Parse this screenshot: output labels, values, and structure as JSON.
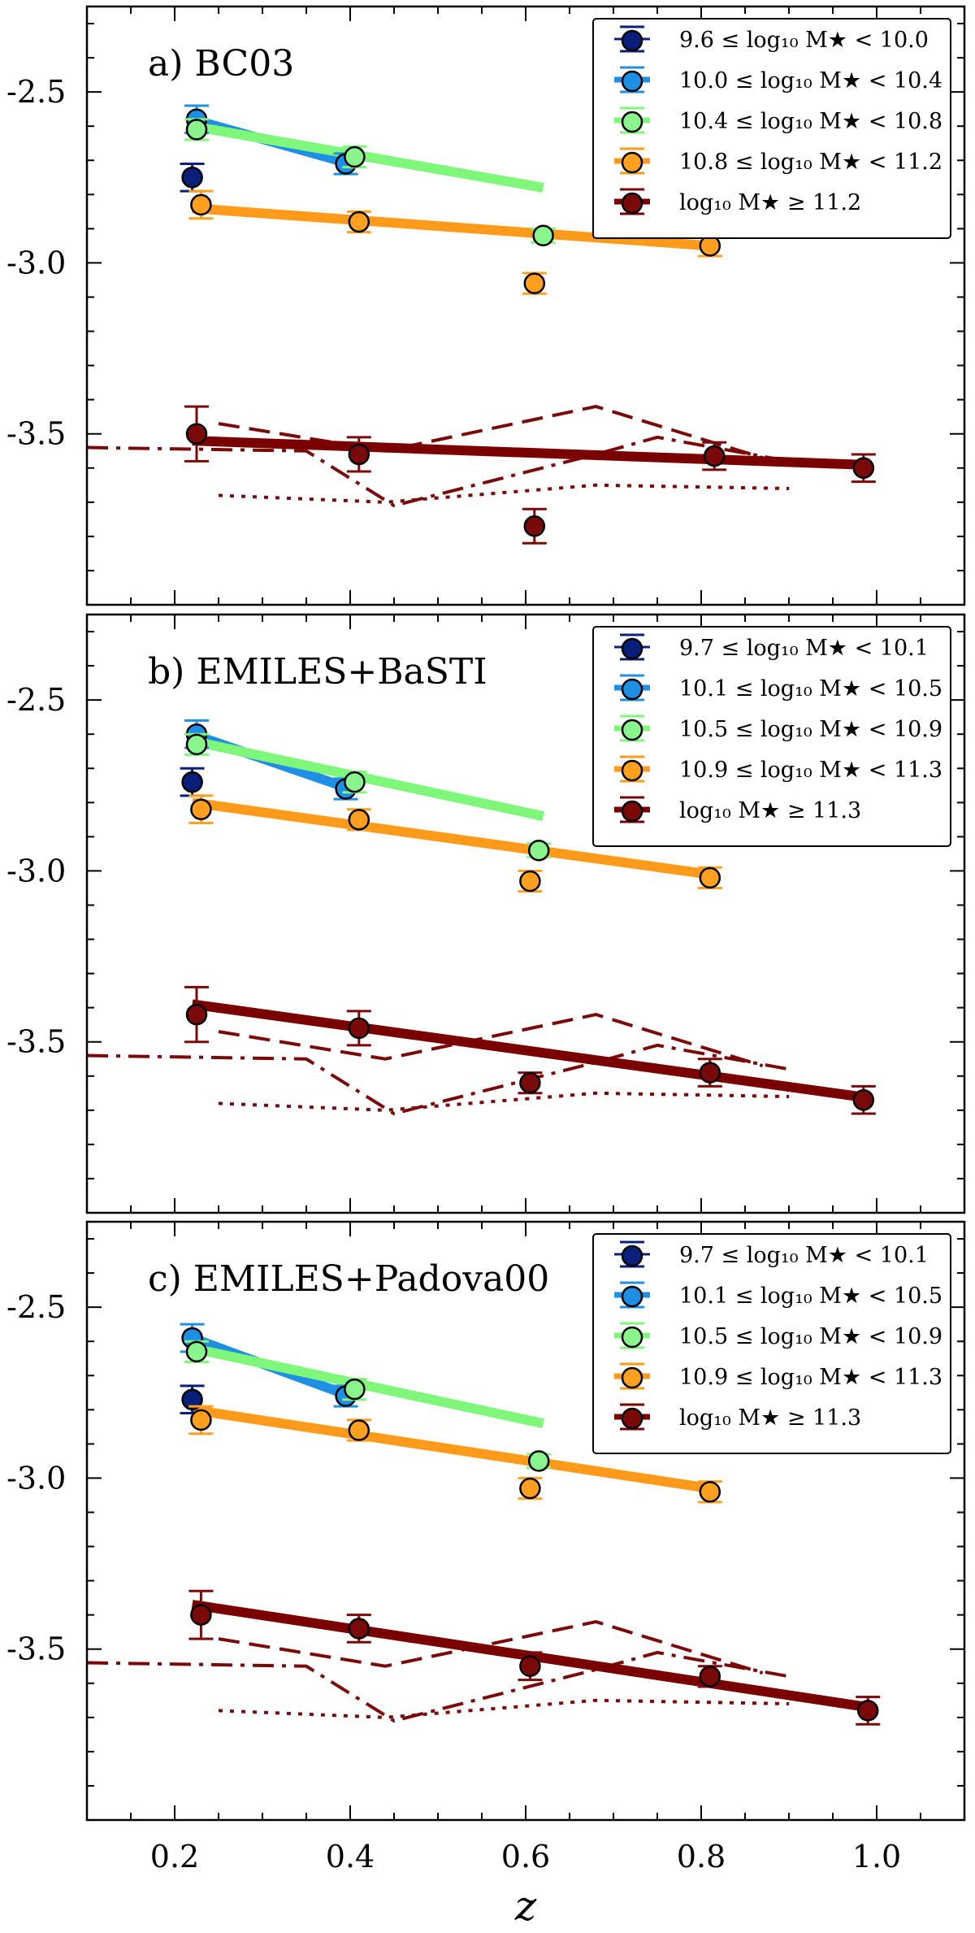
{
  "colors": {
    "bin0": "#0a1f7a",
    "bin1": "#1f8fe6",
    "bin2": "#8af58c",
    "bin3": "#ffa020",
    "bin4": "#7a0a0a",
    "bin1_line": "#1f8fe6",
    "bin2_line": "#7ef77a",
    "bin3_line": "#ff9a1a",
    "bin4_line": "#7a0000"
  },
  "xaxis": {
    "label": "z",
    "range": [
      0.1,
      1.1
    ],
    "ticks": [
      0.2,
      0.4,
      0.6,
      0.8,
      1.0
    ],
    "tick_labels": [
      "0.2",
      "0.4",
      "0.6",
      "0.8",
      "1.0"
    ]
  },
  "yaxis": {
    "range": [
      -4.0,
      -2.25
    ],
    "ticks": [
      -2.5,
      -3.0,
      -3.5
    ],
    "tick_labels": [
      "-2.5",
      "-3.0",
      "-3.5"
    ]
  },
  "chart_data": [
    {
      "type": "scatter",
      "panel_label": "a)   BC03",
      "legend": [
        "9.6 ≤ log₁₀ M★ < 10.0",
        "10.0 ≤ log₁₀ M★ < 10.4",
        "10.4 ≤ log₁₀ M★ < 10.8",
        "10.8 ≤ log₁₀ M★ < 11.2",
        "log₁₀ M★ ≥ 11.2"
      ],
      "series": [
        {
          "name": "bin0",
          "x": [
            0.22
          ],
          "y": [
            -2.75
          ],
          "err": [
            0.04
          ]
        },
        {
          "name": "bin1",
          "x": [
            0.225,
            0.395
          ],
          "y": [
            -2.58,
            -2.71
          ],
          "err": [
            0.04,
            0.03
          ],
          "fit_x": [
            0.22,
            0.4
          ],
          "fit_y": [
            -2.58,
            -2.71
          ]
        },
        {
          "name": "bin2",
          "x": [
            0.225,
            0.405,
            0.62
          ],
          "y": [
            -2.61,
            -2.69,
            -2.92
          ],
          "err": [
            0.03,
            0.03,
            0.02
          ],
          "fit_x": [
            0.22,
            0.62
          ],
          "fit_y": [
            -2.6,
            -2.78
          ]
        },
        {
          "name": "bin3",
          "x": [
            0.23,
            0.41,
            0.61,
            0.81
          ],
          "y": [
            -2.83,
            -2.88,
            -3.06,
            -2.95
          ],
          "err": [
            0.04,
            0.03,
            0.03,
            0.03
          ],
          "fit_x": [
            0.22,
            0.81
          ],
          "fit_y": [
            -2.84,
            -2.95
          ]
        },
        {
          "name": "bin4",
          "x": [
            0.225,
            0.41,
            0.61,
            0.815,
            0.985
          ],
          "y": [
            -3.5,
            -3.56,
            -3.77,
            -3.565,
            -3.6
          ],
          "err": [
            0.08,
            0.05,
            0.05,
            0.04,
            0.04
          ],
          "fit_x": [
            0.22,
            0.98
          ],
          "fit_y": [
            -3.52,
            -3.59
          ]
        }
      ],
      "reference_lines": [
        {
          "style": "dashed",
          "x": [
            0.25,
            0.44,
            0.68,
            0.87
          ],
          "y": [
            -3.47,
            -3.55,
            -3.42,
            -3.57
          ]
        },
        {
          "style": "dashdot",
          "x": [
            0.1,
            0.35,
            0.45,
            0.68,
            0.75,
            0.9
          ],
          "y": [
            -3.54,
            -3.55,
            -3.71,
            -3.56,
            -3.51,
            -3.58
          ]
        },
        {
          "style": "dotted",
          "x": [
            0.25,
            0.44,
            0.68,
            0.9
          ],
          "y": [
            -3.68,
            -3.7,
            -3.65,
            -3.66
          ]
        }
      ]
    },
    {
      "type": "scatter",
      "panel_label": "b)   EMILES+BaSTI",
      "legend": [
        "9.7 ≤ log₁₀ M★ < 10.1",
        "10.1 ≤ log₁₀ M★ < 10.5",
        "10.5 ≤ log₁₀ M★ < 10.9",
        "10.9 ≤ log₁₀ M★ < 11.3",
        "log₁₀ M★ ≥ 11.3"
      ],
      "series": [
        {
          "name": "bin0",
          "x": [
            0.22
          ],
          "y": [
            -2.74
          ],
          "err": [
            0.04
          ]
        },
        {
          "name": "bin1",
          "x": [
            0.225,
            0.395
          ],
          "y": [
            -2.6,
            -2.76
          ],
          "err": [
            0.04,
            0.03
          ],
          "fit_x": [
            0.22,
            0.4
          ],
          "fit_y": [
            -2.6,
            -2.76
          ]
        },
        {
          "name": "bin2",
          "x": [
            0.225,
            0.405,
            0.615
          ],
          "y": [
            -2.63,
            -2.74,
            -2.94
          ],
          "err": [
            0.03,
            0.03,
            0.02
          ],
          "fit_x": [
            0.22,
            0.62
          ],
          "fit_y": [
            -2.62,
            -2.84
          ]
        },
        {
          "name": "bin3",
          "x": [
            0.23,
            0.41,
            0.605,
            0.81
          ],
          "y": [
            -2.82,
            -2.85,
            -3.03,
            -3.02
          ],
          "err": [
            0.04,
            0.03,
            0.03,
            0.03
          ],
          "fit_x": [
            0.22,
            0.81
          ],
          "fit_y": [
            -2.8,
            -3.01
          ]
        },
        {
          "name": "bin4",
          "x": [
            0.225,
            0.41,
            0.605,
            0.81,
            0.985
          ],
          "y": [
            -3.42,
            -3.46,
            -3.62,
            -3.59,
            -3.67
          ],
          "err": [
            0.08,
            0.05,
            0.03,
            0.04,
            0.04
          ],
          "fit_x": [
            0.22,
            0.98
          ],
          "fit_y": [
            -3.39,
            -3.66
          ]
        }
      ],
      "reference_lines": [
        {
          "style": "dashed",
          "x": [
            0.25,
            0.44,
            0.68,
            0.87
          ],
          "y": [
            -3.47,
            -3.55,
            -3.42,
            -3.57
          ]
        },
        {
          "style": "dashdot",
          "x": [
            0.1,
            0.35,
            0.45,
            0.68,
            0.75,
            0.9
          ],
          "y": [
            -3.54,
            -3.55,
            -3.71,
            -3.56,
            -3.51,
            -3.58
          ]
        },
        {
          "style": "dotted",
          "x": [
            0.25,
            0.44,
            0.68,
            0.9
          ],
          "y": [
            -3.68,
            -3.7,
            -3.65,
            -3.66
          ]
        }
      ]
    },
    {
      "type": "scatter",
      "panel_label": "c)   EMILES+Padova00",
      "legend": [
        "9.7 ≤ log₁₀ M★ < 10.1",
        "10.1 ≤ log₁₀ M★ < 10.5",
        "10.5 ≤ log₁₀ M★ < 10.9",
        "10.9 ≤ log₁₀ M★ < 11.3",
        "log₁₀ M★ ≥ 11.3"
      ],
      "series": [
        {
          "name": "bin0",
          "x": [
            0.22
          ],
          "y": [
            -2.77
          ],
          "err": [
            0.04
          ]
        },
        {
          "name": "bin1",
          "x": [
            0.22,
            0.395
          ],
          "y": [
            -2.59,
            -2.76
          ],
          "err": [
            0.04,
            0.03
          ],
          "fit_x": [
            0.22,
            0.4
          ],
          "fit_y": [
            -2.59,
            -2.76
          ]
        },
        {
          "name": "bin2",
          "x": [
            0.225,
            0.405,
            0.615
          ],
          "y": [
            -2.63,
            -2.74,
            -2.95
          ],
          "err": [
            0.03,
            0.03,
            0.02
          ],
          "fit_x": [
            0.22,
            0.62
          ],
          "fit_y": [
            -2.62,
            -2.84
          ]
        },
        {
          "name": "bin3",
          "x": [
            0.23,
            0.41,
            0.605,
            0.81
          ],
          "y": [
            -2.83,
            -2.86,
            -3.03,
            -3.04
          ],
          "err": [
            0.04,
            0.03,
            0.03,
            0.03
          ],
          "fit_x": [
            0.22,
            0.81
          ],
          "fit_y": [
            -2.8,
            -3.03
          ]
        },
        {
          "name": "bin4",
          "x": [
            0.23,
            0.41,
            0.605,
            0.81,
            0.99
          ],
          "y": [
            -3.4,
            -3.44,
            -3.55,
            -3.58,
            -3.68
          ],
          "err": [
            0.07,
            0.04,
            0.04,
            0.03,
            0.04
          ],
          "fit_x": [
            0.22,
            0.99
          ],
          "fit_y": [
            -3.37,
            -3.67
          ]
        }
      ],
      "reference_lines": [
        {
          "style": "dashed",
          "x": [
            0.25,
            0.44,
            0.68,
            0.87
          ],
          "y": [
            -3.47,
            -3.55,
            -3.42,
            -3.57
          ]
        },
        {
          "style": "dashdot",
          "x": [
            0.1,
            0.35,
            0.45,
            0.68,
            0.75,
            0.9
          ],
          "y": [
            -3.54,
            -3.55,
            -3.71,
            -3.56,
            -3.51,
            -3.58
          ]
        },
        {
          "style": "dotted",
          "x": [
            0.25,
            0.44,
            0.68,
            0.9
          ],
          "y": [
            -3.68,
            -3.7,
            -3.65,
            -3.66
          ]
        }
      ]
    }
  ]
}
